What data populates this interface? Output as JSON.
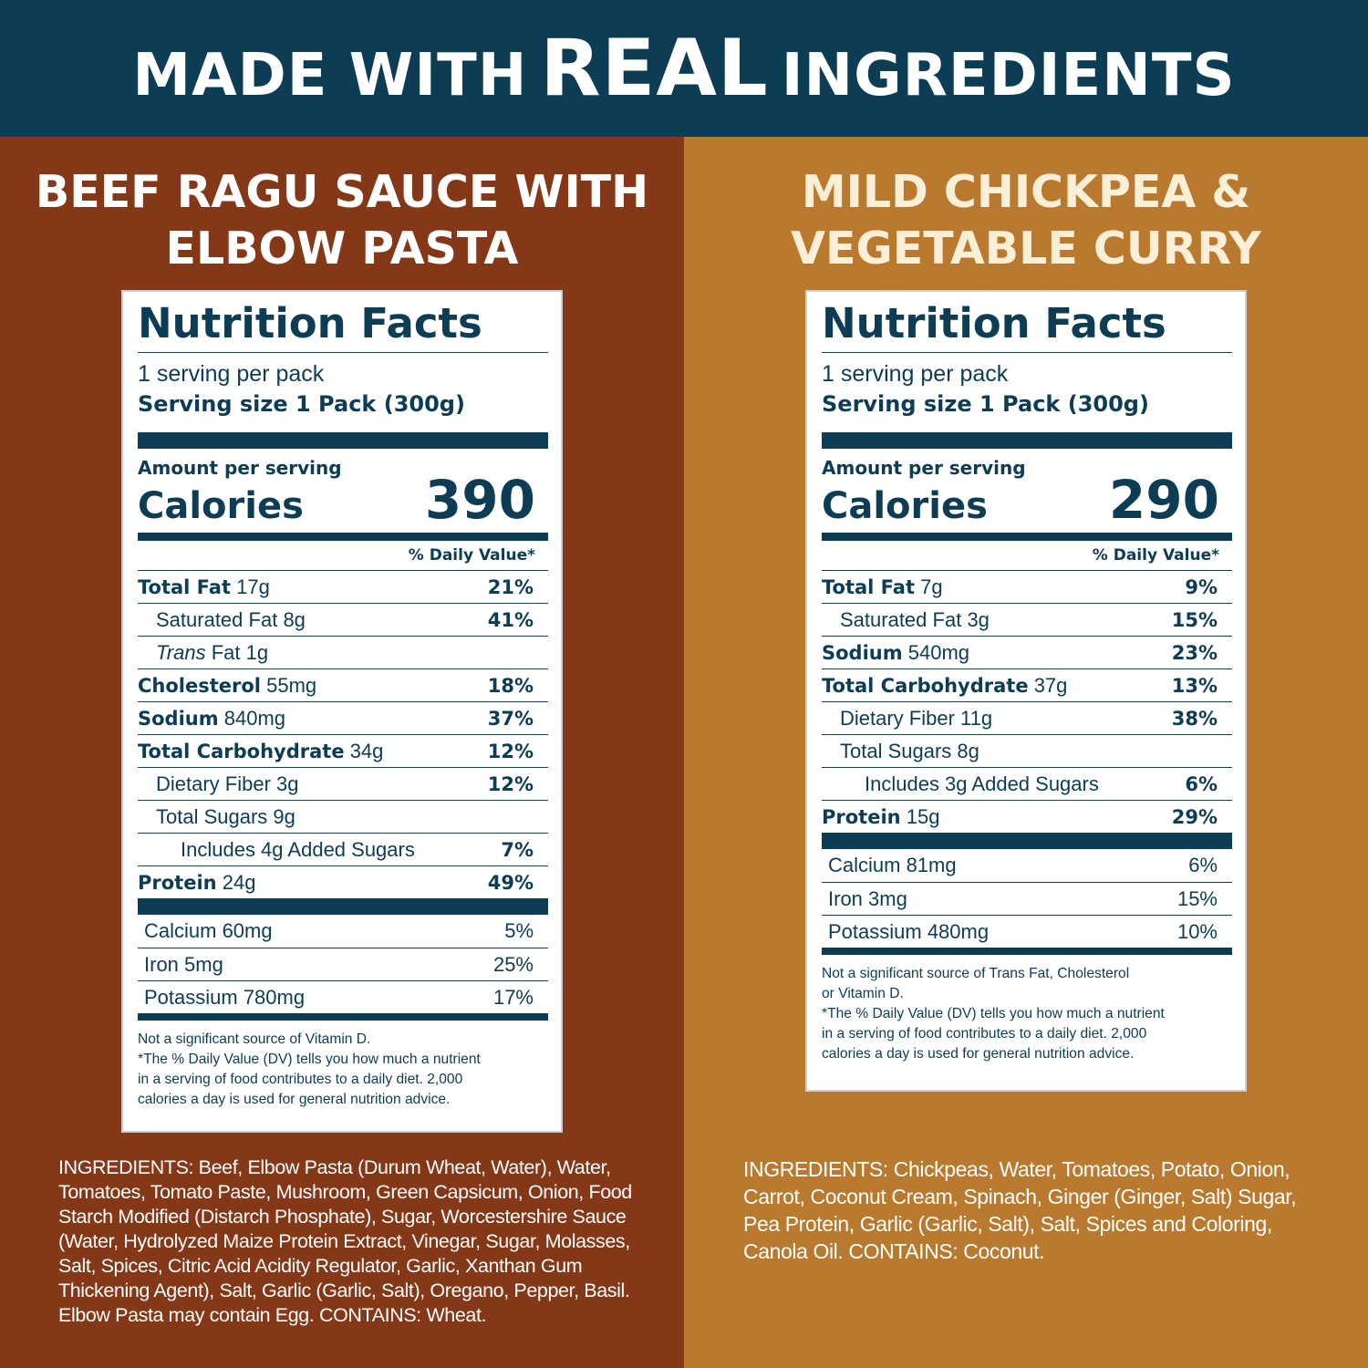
{
  "banner": {
    "pre": "MADE WITH",
    "emphasis": "REAL",
    "post": "INGREDIENTS"
  },
  "products": [
    {
      "title_lines": [
        "BEEF RAGU SAUCE WITH",
        "ELBOW PASTA"
      ],
      "label": {
        "title": "Nutrition Facts",
        "servings": "1 serving per pack",
        "serving_size": "Serving size 1 Pack (300g)",
        "amount_per_serving": "Amount per serving",
        "calories_label": "Calories",
        "calories": "390",
        "dv_header": "% Daily Value*",
        "nutrients": [
          {
            "name": "Total Fat",
            "amount": "17g",
            "dv": "21%"
          },
          {
            "name": "Saturated Fat",
            "amount": "8g",
            "dv": "41%"
          },
          {
            "name": "Trans",
            "amount": "Fat 1g",
            "dv": ""
          },
          {
            "name": "Cholesterol",
            "amount": "55mg",
            "dv": "18%"
          },
          {
            "name": "Sodium",
            "amount": "840mg",
            "dv": "37%"
          },
          {
            "name": "Total Carbohydrate",
            "amount": "34g",
            "dv": "12%"
          },
          {
            "name": "Dietary Fiber",
            "amount": "3g",
            "dv": "12%"
          },
          {
            "name": "Total Sugars",
            "amount": "9g",
            "dv": ""
          },
          {
            "name": "Includes 4g Added Sugars",
            "amount": "",
            "dv": "7%"
          },
          {
            "name": "Protein",
            "amount": "24g",
            "dv": "49%"
          }
        ],
        "minerals": [
          {
            "name": "Calcium 60mg",
            "dv": "5%"
          },
          {
            "name": "Iron 5mg",
            "dv": "25%"
          },
          {
            "name": "Potassium 780mg",
            "dv": "17%"
          }
        ],
        "footnote_lines": [
          "Not a significant source of Vitamin D.",
          "*The % Daily Value (DV) tells you how much a nutrient",
          "in a serving of food contributes to a daily diet. 2,000",
          "calories a day is used for general nutrition advice."
        ]
      },
      "ingredients_lines": [
        "INGREDIENTS: Beef, Elbow Pasta (Durum Wheat, Water), Water,",
        "Tomatoes, Tomato Paste, Mushroom, Green Capsicum, Onion, Food",
        "Starch Modified  (Distarch Phosphate), Sugar, Worcestershire Sauce",
        "(Water, Hydrolyzed Maize Protein Extract, Vinegar, Sugar, Molasses,",
        "Salt, Spices, Citric Acid Acidity Regulator, Garlic, Xanthan Gum",
        "Thickening Agent), Salt, Garlic (Garlic, Salt), Oregano, Pepper, Basil.",
        "Elbow Pasta may contain Egg. CONTAINS: Wheat."
      ]
    },
    {
      "title_lines": [
        "MILD CHICKPEA &",
        "VEGETABLE CURRY"
      ],
      "label": {
        "title": "Nutrition Facts",
        "servings": "1 serving per pack",
        "serving_size": "Serving size 1 Pack (300g)",
        "amount_per_serving": "Amount per serving",
        "calories_label": "Calories",
        "calories": "290",
        "dv_header": "% Daily Value*",
        "nutrients": [
          {
            "name": "Total Fat",
            "amount": "7g",
            "dv": "9%"
          },
          {
            "name": "Saturated Fat",
            "amount": "3g",
            "dv": "15%"
          },
          {
            "name": "Sodium",
            "amount": "540mg",
            "dv": "23%"
          },
          {
            "name": "Total Carbohydrate",
            "amount": "37g",
            "dv": "13%"
          },
          {
            "name": "Dietary Fiber",
            "amount": "11g",
            "dv": "38%"
          },
          {
            "name": "Total Sugars",
            "amount": "8g",
            "dv": ""
          },
          {
            "name": "Includes 3g Added Sugars",
            "amount": "",
            "dv": "6%"
          },
          {
            "name": "Protein",
            "amount": "15g",
            "dv": "29%"
          }
        ],
        "minerals": [
          {
            "name": "Calcium 81mg",
            "dv": "6%"
          },
          {
            "name": "Iron 3mg",
            "dv": "15%"
          },
          {
            "name": "Potassium 480mg",
            "dv": "10%"
          }
        ],
        "footnote_lines": [
          "Not a significant source of Trans Fat, Cholesterol",
          "or Vitamin D.",
          "*The % Daily Value (DV) tells you how much a nutrient",
          "in a serving of food contributes to a daily diet. 2,000",
          "calories a day is used for general nutrition advice."
        ]
      },
      "ingredients_lines": [
        "INGREDIENTS: Chickpeas, Water, Tomatoes, Potato, Onion,",
        "Carrot, Coconut Cream, Spinach, Ginger (Ginger, Salt) Sugar,",
        "Pea Protein, Garlic (Garlic, Salt), Salt, Spices and Coloring,",
        "Canola Oil. CONTAINS: Coconut."
      ]
    }
  ]
}
